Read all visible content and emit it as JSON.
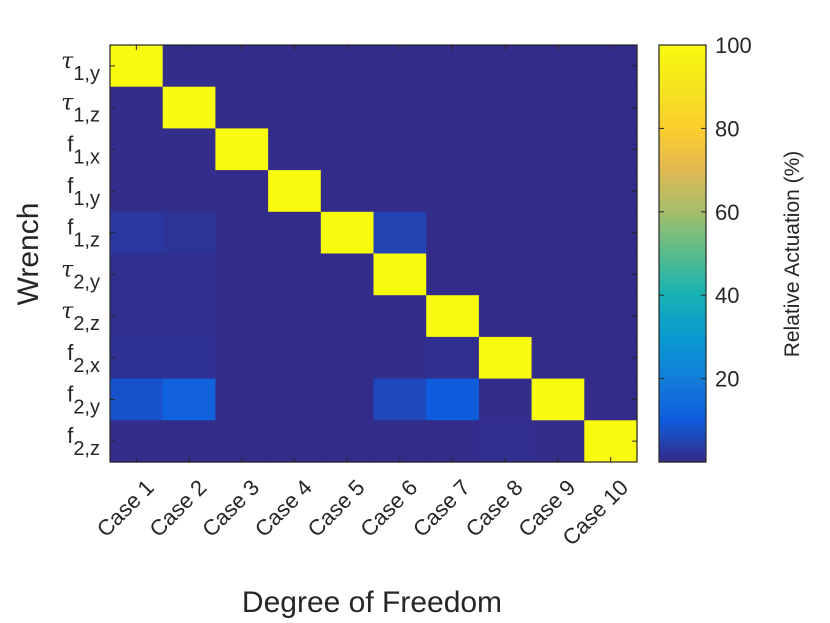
{
  "chart_data": {
    "type": "heatmap",
    "xlabel": "Degree of Freedom",
    "ylabel": "Wrench",
    "x_categories": [
      "Case 1",
      "Case 2",
      "Case 3",
      "Case 4",
      "Case 5",
      "Case 6",
      "Case 7",
      "Case 8",
      "Case 9",
      "Case 10"
    ],
    "y_categories": [
      {
        "base": "τ",
        "sub": "1,y",
        "greek": true
      },
      {
        "base": "τ",
        "sub": "1,z",
        "greek": true
      },
      {
        "base": "f",
        "sub": "1,x",
        "greek": false
      },
      {
        "base": "f",
        "sub": "1,y",
        "greek": false
      },
      {
        "base": "f",
        "sub": "1,z",
        "greek": false
      },
      {
        "base": "τ",
        "sub": "2,y",
        "greek": true
      },
      {
        "base": "τ",
        "sub": "2,z",
        "greek": true
      },
      {
        "base": "f",
        "sub": "2,x",
        "greek": false
      },
      {
        "base": "f",
        "sub": "2,y",
        "greek": false
      },
      {
        "base": "f",
        "sub": "2,z",
        "greek": false
      }
    ],
    "values": [
      [
        100,
        0.5,
        0.3,
        0.3,
        0.3,
        0.3,
        0.3,
        0.3,
        0.3,
        0.3
      ],
      [
        0.5,
        100,
        0.3,
        0.3,
        0.3,
        0.3,
        0.3,
        0.3,
        0.3,
        0.3
      ],
      [
        0.5,
        0.5,
        100,
        0.3,
        0.3,
        0.3,
        0.3,
        0.3,
        0.3,
        0.3
      ],
      [
        0.5,
        0.5,
        0.3,
        100,
        0.3,
        0.3,
        0.3,
        0.3,
        0.3,
        0.3
      ],
      [
        3,
        2,
        0.3,
        0.3,
        100,
        5,
        0.3,
        0.3,
        0.3,
        0.3
      ],
      [
        1,
        1,
        0.3,
        0.3,
        0.3,
        100,
        0.3,
        0.3,
        0.3,
        0.3
      ],
      [
        1,
        1,
        0.3,
        0.3,
        0.3,
        0.5,
        100,
        0.3,
        0.3,
        0.3
      ],
      [
        1.5,
        1.5,
        0.3,
        0.3,
        0.3,
        0.5,
        1,
        100,
        0.3,
        0.3
      ],
      [
        8,
        12,
        0.3,
        0.3,
        0.3,
        6,
        10,
        0.5,
        100,
        0.3
      ],
      [
        0.5,
        0.5,
        0.3,
        0.3,
        0.3,
        0.3,
        0.3,
        1,
        0.5,
        100
      ]
    ],
    "colorbar": {
      "label": "Relative Actuation (%)",
      "ticks": [
        20,
        40,
        60,
        80,
        100
      ],
      "range": [
        0,
        100
      ],
      "colormap": "parula"
    },
    "grid": false
  }
}
